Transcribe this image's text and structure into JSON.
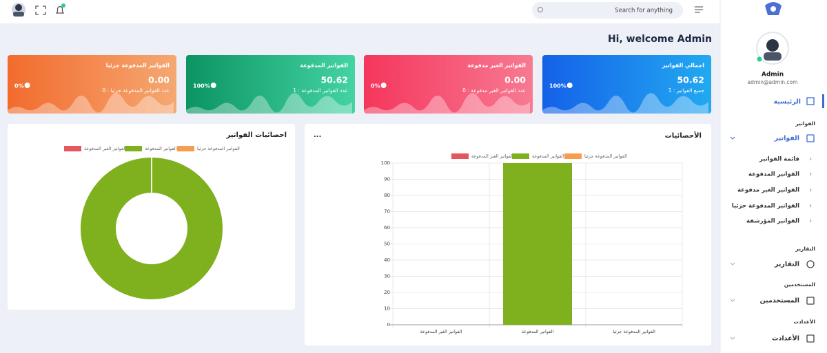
{
  "header": {
    "search_placeholder": "Search for anything"
  },
  "welcome": "Hi, welcome Admin",
  "sidebar": {
    "user_name": "Admin",
    "user_email": "admin@admin.com",
    "home": "الرئيسية",
    "groups": [
      {
        "section": "الفواتير",
        "item": "الفواتير",
        "subitems": [
          "قائمة الفواتير",
          "الفواتير المدفوعة",
          "الفواتير الغير مدفوعة",
          "الفواتير المدفوعة جزئيا",
          "الفواتير المؤرشفة"
        ]
      },
      {
        "section": "التقارير",
        "item": "التقارير"
      },
      {
        "section": "المستخدمين",
        "item": "المستخدمين"
      },
      {
        "section": "الأعدادت",
        "item": "الأعدادت"
      }
    ]
  },
  "cards": [
    {
      "title": "اجمالي الفواتير",
      "value": "50.62",
      "subtitle": "جميع الفواتير : 1",
      "percent": "100%",
      "color": "#1565e8"
    },
    {
      "title": "الفواتير الغير مدفوعة",
      "value": "0.00",
      "subtitle": "عدد الفواتير الغير مدفوعة : 0",
      "percent": "0%",
      "color": "#f5395f"
    },
    {
      "title": "الفواتير المدفوعة",
      "value": "50.62",
      "subtitle": "عدد الفواتير المدفوعة : 1",
      "percent": "100%",
      "color": "#0e9a68"
    },
    {
      "title": "الفواتير المدفوعة جزئيا",
      "value": "0.00",
      "subtitle": "عدد الفواتير المدفوعة جزئيا : 0",
      "percent": "0%",
      "color": "#f36d30"
    }
  ],
  "chart_data": [
    {
      "type": "doughnut",
      "title": "احصائيات الفواتير",
      "categories": [
        "الفواتير الغير المدفوعة",
        "الفواتير المدفوعة",
        "الفواتير المدفوعة جزئيا"
      ],
      "values": [
        0,
        100,
        0
      ],
      "colors": [
        "#e5575f",
        "#7fb01e",
        "#f89c4f"
      ]
    },
    {
      "type": "bar",
      "title": "الأحصائيات",
      "menu": "...",
      "categories": [
        "الفواتير الغير المدفوعة",
        "الفواتير المدفوعة",
        "الفواتير المدفوعة جزئيا"
      ],
      "values": [
        0,
        100,
        0
      ],
      "colors": [
        "#e5575f",
        "#7fb01e",
        "#f89c4f"
      ],
      "ylim": [
        0,
        100
      ],
      "yticks": [
        0,
        10,
        20,
        30,
        40,
        50,
        60,
        70,
        80,
        90,
        100
      ],
      "grid": true
    }
  ]
}
